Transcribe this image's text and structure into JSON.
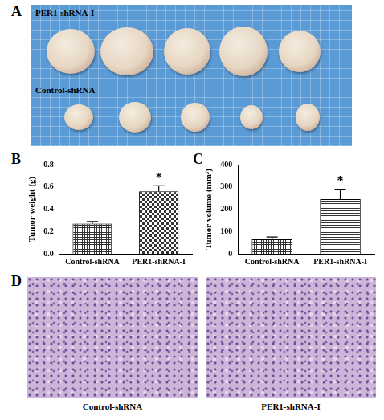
{
  "photos": [
    {
      "letter": "A",
      "labels": [
        "PER1-shRNA-I",
        "Control-shRNA"
      ]
    },
    {
      "letter": "D",
      "labels": [
        "Control-shRNA",
        "PER1-shRNA-I"
      ]
    }
  ],
  "chart_data": [
    {
      "letter": "B",
      "type": "bar",
      "y_label": "Tumor weight (g)",
      "categories": [
        "Control-shRNA",
        "PER1-shRNA-I"
      ],
      "values": [
        0.27,
        0.56
      ],
      "errors": [
        0.02,
        0.05
      ],
      "colors": [
        "#333333",
        "#333333"
      ],
      "ylim": [
        0,
        0.8
      ],
      "yticks": [
        {
          "value": 0,
          "label": "0.0"
        },
        0.2,
        0.4,
        0.6,
        0.8
      ],
      "grid": false,
      "annotations": [
        {
          "category": "PER1-shRNA-I",
          "text": "*"
        }
      ]
    },
    {
      "letter": "C",
      "type": "bar",
      "y_label": "Tumor volume (mm³)",
      "categories": [
        "Control-shRNA",
        "PER1-shRNA-I"
      ],
      "values": [
        65,
        245
      ],
      "errors": [
        10,
        45
      ],
      "colors": [
        "#333333",
        "#333333"
      ],
      "ylim": [
        0,
        400
      ],
      "yticks": [
        0,
        100,
        200,
        300,
        400
      ],
      "grid": false,
      "annotations": [
        {
          "category": "PER1-shRNA-I",
          "text": "*"
        }
      ]
    }
  ]
}
